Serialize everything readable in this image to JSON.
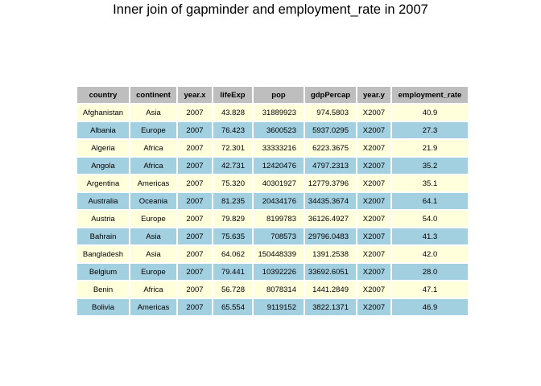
{
  "chart_data": {
    "type": "table",
    "title": "Inner join of gapminder and employment_rate in 2007",
    "header_color": "#bebebe",
    "row_colors": [
      "#ffffdc",
      "#a2d0e1"
    ],
    "columns": [
      "country",
      "continent",
      "year.x",
      "lifeExp",
      "pop",
      "gdpPercap",
      "year.y",
      "employment_rate"
    ],
    "rows": [
      [
        "Afghanistan",
        "Asia",
        "2007",
        "43.828",
        "31889923",
        "974.5803",
        "X2007",
        "40.9"
      ],
      [
        "Albania",
        "Europe",
        "2007",
        "76.423",
        "3600523",
        "5937.0295",
        "X2007",
        "27.3"
      ],
      [
        "Algeria",
        "Africa",
        "2007",
        "72.301",
        "33333216",
        "6223.3675",
        "X2007",
        "21.9"
      ],
      [
        "Angola",
        "Africa",
        "2007",
        "42.731",
        "12420476",
        "4797.2313",
        "X2007",
        "35.2"
      ],
      [
        "Argentina",
        "Americas",
        "2007",
        "75.320",
        "40301927",
        "12779.3796",
        "X2007",
        "35.1"
      ],
      [
        "Australia",
        "Oceania",
        "2007",
        "81.235",
        "20434176",
        "34435.3674",
        "X2007",
        "64.1"
      ],
      [
        "Austria",
        "Europe",
        "2007",
        "79.829",
        "8199783",
        "36126.4927",
        "X2007",
        "54.0"
      ],
      [
        "Bahrain",
        "Asia",
        "2007",
        "75.635",
        "708573",
        "29796.0483",
        "X2007",
        "41.3"
      ],
      [
        "Bangladesh",
        "Asia",
        "2007",
        "64.062",
        "150448339",
        "1391.2538",
        "X2007",
        "42.0"
      ],
      [
        "Belgium",
        "Europe",
        "2007",
        "79.441",
        "10392226",
        "33692.6051",
        "X2007",
        "28.0"
      ],
      [
        "Benin",
        "Africa",
        "2007",
        "56.728",
        "8078314",
        "1441.2849",
        "X2007",
        "47.1"
      ],
      [
        "Bolivia",
        "Americas",
        "2007",
        "65.554",
        "9119152",
        "3822.1371",
        "X2007",
        "46.9"
      ]
    ]
  }
}
